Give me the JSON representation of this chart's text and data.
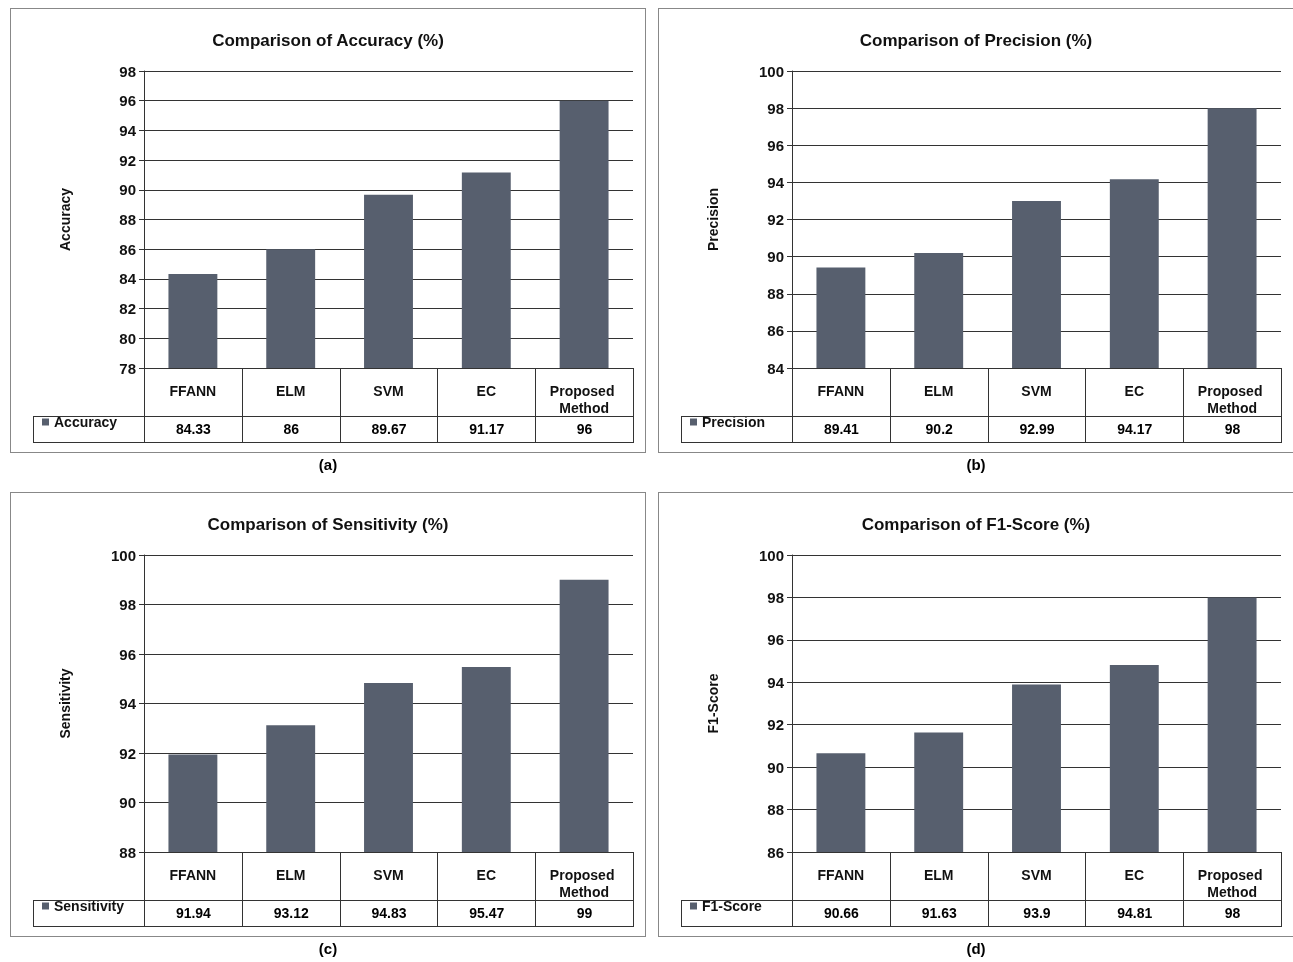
{
  "chart_data": [
    {
      "type": "bar",
      "title": "Comparison of Accuracy (%)",
      "ylabel": "Accuracy",
      "categories": [
        "FFANN",
        "ELM",
        "SVM",
        "EC",
        "Proposed Method"
      ],
      "series": [
        {
          "name": "Accuracy",
          "color": "#575f6e",
          "values": [
            84.33,
            86,
            89.67,
            91.17,
            96
          ]
        }
      ],
      "ylim": [
        78,
        98
      ],
      "yticks": [
        78,
        80,
        82,
        84,
        86,
        88,
        90,
        92,
        94,
        96,
        98
      ],
      "grid": "y",
      "legend": "bottom left",
      "data_labels": true,
      "annotations": [
        "(a)"
      ]
    },
    {
      "type": "bar",
      "title": "Comparison of Precision (%)",
      "ylabel": "Precision",
      "categories": [
        "FFANN",
        "ELM",
        "SVM",
        "EC",
        "Proposed Method"
      ],
      "series": [
        {
          "name": "Precision",
          "color": "#575f6e",
          "values": [
            89.41,
            90.2,
            92.99,
            94.17,
            98
          ]
        }
      ],
      "ylim": [
        84,
        100
      ],
      "yticks": [
        84,
        86,
        88,
        90,
        92,
        94,
        96,
        98,
        100
      ],
      "grid": "y",
      "legend": "bottom left",
      "data_labels": true,
      "annotations": [
        "(b)"
      ]
    },
    {
      "type": "bar",
      "title": "Comparison of Sensitivity (%)",
      "ylabel": "Sensitivity",
      "categories": [
        "FFANN",
        "ELM",
        "SVM",
        "EC",
        "Proposed Method"
      ],
      "series": [
        {
          "name": "Sensitivity",
          "color": "#575f6e",
          "values": [
            91.94,
            93.12,
            94.83,
            95.47,
            99
          ]
        }
      ],
      "ylim": [
        88,
        100
      ],
      "yticks": [
        88,
        90,
        92,
        94,
        96,
        98,
        100
      ],
      "grid": "y",
      "legend": "bottom left",
      "data_labels": true,
      "annotations": [
        "(c)"
      ]
    },
    {
      "type": "bar",
      "title": "Comparison of F1-Score (%)",
      "ylabel": "F1-Score",
      "categories": [
        "FFANN",
        "ELM",
        "SVM",
        "EC",
        "Proposed Method"
      ],
      "series": [
        {
          "name": "F1-Score",
          "color": "#575f6e",
          "values": [
            90.66,
            91.63,
            93.9,
            94.81,
            98
          ]
        }
      ],
      "ylim": [
        86,
        100
      ],
      "yticks": [
        86,
        88,
        90,
        92,
        94,
        96,
        98,
        100
      ],
      "grid": "y",
      "legend": "bottom left",
      "data_labels": true,
      "annotations": [
        "(d)"
      ]
    }
  ]
}
